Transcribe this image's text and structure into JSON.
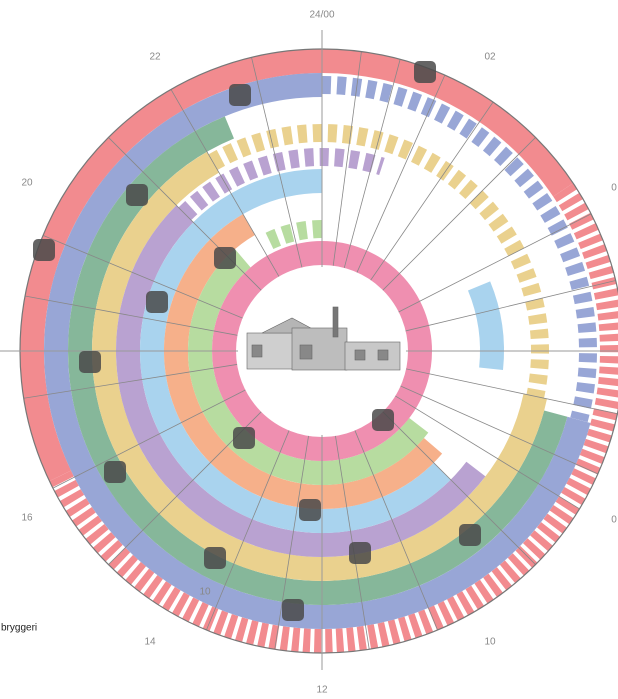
{
  "hour_labels": [
    "24/00",
    "02",
    "0",
    "0",
    "10",
    "12",
    "14",
    "16",
    "20",
    "22"
  ],
  "labels": {
    "inner_hour": "10",
    "caption": "bryggeri"
  }
}
